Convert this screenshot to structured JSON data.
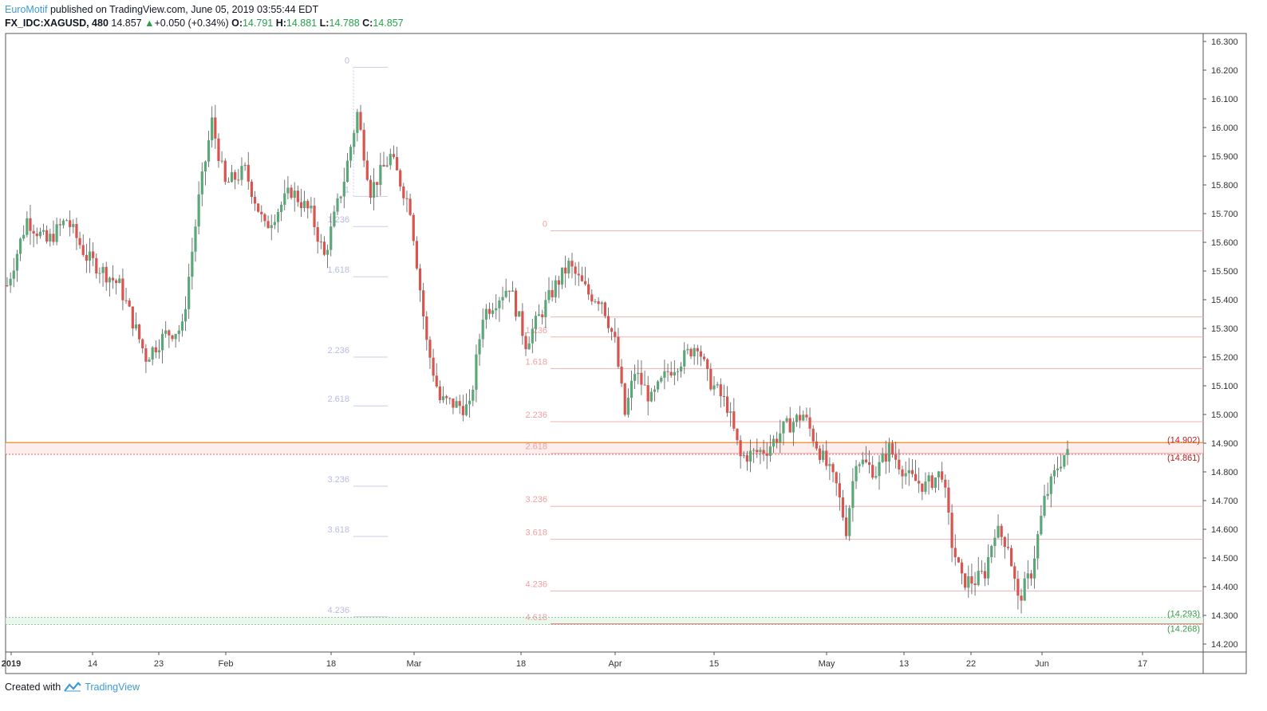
{
  "header": {
    "author": "EuroMotif",
    "published_text": "published on TradingView.com, June 05, 2019 03:55:44 EDT",
    "symbol": "FX_IDC:XAGUSD, 480",
    "last": "14.857",
    "change": "+0.050 (+0.34%)",
    "o_label": "O:",
    "o_value": "14.791",
    "h_label": "H:",
    "h_value": "14.881",
    "l_label": "L:",
    "l_value": "14.788",
    "c_label": "C:",
    "c_value": "14.857"
  },
  "footer": {
    "created_with": "Created with",
    "brand": "TradingView"
  },
  "colors": {
    "up": "#5aa777",
    "down": "#d9534f",
    "fib1": "#c8cde8",
    "fib2": "#f0b3b3",
    "orange": "#f08a24",
    "red_dotted": "#e06666",
    "green_dotted": "#8fc89f"
  },
  "chart_data": {
    "type": "candlestick",
    "y_range": [
      14.15,
      16.35
    ],
    "y_ticks": [
      "16.300",
      "16.200",
      "16.100",
      "16.000",
      "15.900",
      "15.800",
      "15.700",
      "15.600",
      "15.500",
      "15.400",
      "15.300",
      "15.200",
      "15.100",
      "15.000",
      "14.900",
      "14.800",
      "14.700",
      "14.600",
      "14.500",
      "14.400",
      "14.300",
      "14.200"
    ],
    "x_ticks": [
      "2019",
      "14",
      "23",
      "Feb",
      "18",
      "Mar",
      "18",
      "Apr",
      "15",
      "May",
      "13",
      "22",
      "Jun",
      "17"
    ],
    "price_tags": [
      "(14.902)",
      "(14.861)",
      "(14.293)",
      "(14.268)"
    ],
    "fib_set_1": {
      "labels": [
        "0",
        "1",
        "1.236",
        "1.618",
        "2.236",
        "2.618",
        "3.236",
        "3.618",
        "4.236"
      ],
      "levels": [
        16.21,
        15.76,
        15.655,
        15.48,
        15.2,
        15.03,
        14.75,
        14.575,
        14.295
      ]
    },
    "fib_set_2": {
      "labels": [
        "0",
        "1",
        "1.236",
        "1.618",
        "2.236",
        "2.618",
        "3.236",
        "3.618",
        "4.236",
        "4.618"
      ],
      "levels": [
        15.64,
        15.34,
        15.27,
        15.16,
        14.975,
        14.865,
        14.68,
        14.565,
        14.385,
        14.27
      ]
    },
    "horizontal_lines": [
      {
        "name": "resistance",
        "value": 14.902
      },
      {
        "name": "resistance-zone-low",
        "value": 14.861
      },
      {
        "name": "support-zone-high",
        "value": 14.293
      },
      {
        "name": "support-zone-low",
        "value": 14.268
      }
    ],
    "series_path": {
      "note": "",
      "anchors": [
        [
          0,
          15.45
        ],
        [
          6,
          15.68
        ],
        [
          12,
          15.6
        ],
        [
          18,
          15.68
        ],
        [
          24,
          15.55
        ],
        [
          34,
          15.45
        ],
        [
          42,
          15.2
        ],
        [
          48,
          15.28
        ],
        [
          53,
          15.3
        ],
        [
          58,
          15.75
        ],
        [
          62,
          16.02
        ],
        [
          66,
          15.8
        ],
        [
          72,
          15.85
        ],
        [
          78,
          15.65
        ],
        [
          86,
          15.78
        ],
        [
          92,
          15.7
        ],
        [
          96,
          15.55
        ],
        [
          102,
          15.82
        ],
        [
          106,
          16.05
        ],
        [
          110,
          15.78
        ],
        [
          116,
          15.9
        ],
        [
          122,
          15.72
        ],
        [
          127,
          15.25
        ],
        [
          131,
          15.05
        ],
        [
          140,
          15.02
        ],
        [
          144,
          15.35
        ],
        [
          152,
          15.45
        ],
        [
          157,
          15.25
        ],
        [
          166,
          15.45
        ],
        [
          170,
          15.52
        ],
        [
          176,
          15.42
        ],
        [
          180,
          15.4
        ],
        [
          184,
          15.25
        ],
        [
          187,
          15.0
        ],
        [
          190,
          15.15
        ],
        [
          195,
          15.05
        ],
        [
          200,
          15.15
        ],
        [
          205,
          15.2
        ],
        [
          209,
          15.25
        ],
        [
          212,
          15.13
        ],
        [
          218,
          15.03
        ],
        [
          222,
          14.85
        ],
        [
          230,
          14.88
        ],
        [
          235,
          14.95
        ],
        [
          241,
          15.0
        ],
        [
          246,
          14.87
        ],
        [
          251,
          14.75
        ],
        [
          254,
          14.6
        ],
        [
          257,
          14.85
        ],
        [
          263,
          14.8
        ],
        [
          267,
          14.88
        ],
        [
          273,
          14.78
        ],
        [
          278,
          14.75
        ],
        [
          283,
          14.8
        ],
        [
          286,
          14.55
        ],
        [
          289,
          14.42
        ],
        [
          293,
          14.42
        ],
        [
          296,
          14.45
        ],
        [
          299,
          14.6
        ],
        [
          303,
          14.55
        ],
        [
          306,
          14.35
        ],
        [
          310,
          14.45
        ],
        [
          314,
          14.7
        ],
        [
          318,
          14.82
        ],
        [
          320,
          14.86
        ]
      ]
    }
  }
}
